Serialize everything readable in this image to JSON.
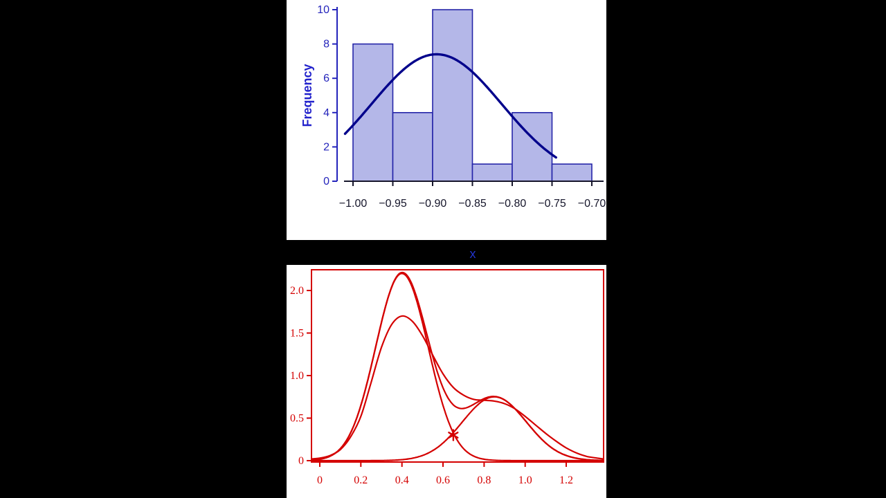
{
  "background_color": "#000000",
  "chart_data": [
    {
      "type": "bar",
      "subtype": "histogram",
      "title": "",
      "xlabel": "x",
      "ylabel": "Frequency",
      "bin_edges": [
        -1.0,
        -0.95,
        -0.9,
        -0.85,
        -0.8,
        -0.75,
        -0.7
      ],
      "counts": [
        8,
        4,
        10,
        1,
        4,
        1
      ],
      "x_tick_values": [
        -1.0,
        -0.95,
        -0.9,
        -0.85,
        -0.8,
        -0.75,
        -0.7
      ],
      "x_tick_labels": [
        "−1.00",
        "−0.95",
        "−0.90",
        "−0.85",
        "−0.80",
        "−0.75",
        "−0.70"
      ],
      "y_tick_values": [
        0,
        2,
        4,
        6,
        8,
        10
      ],
      "y_tick_labels": [
        "0",
        "2",
        "4",
        "6",
        "8",
        "10"
      ],
      "xlim": [
        -1.005,
        -0.695
      ],
      "ylim": [
        0,
        10
      ],
      "grid": false,
      "legend": "none",
      "overlay_curve": {
        "kind": "fitted-normal-density",
        "gaussians": [
          {
            "mu": -0.895,
            "sigma": 0.082,
            "amplitude": 7.4
          }
        ],
        "x_range": [
          -1.01,
          -0.745
        ]
      },
      "colors": {
        "bar_fill": "#b4b7e8",
        "bar_border": "#2525a8",
        "curve": "#00008b",
        "y_axis": "#2424bb",
        "x_axis": "#15152a",
        "ylabel": "#2222cc",
        "xlabel": "#2233cc"
      }
    },
    {
      "type": "line",
      "title": "",
      "xlabel": "",
      "ylabel": "",
      "x_tick_values": [
        0,
        0.2,
        0.4,
        0.6,
        0.8,
        1.0,
        1.2
      ],
      "x_tick_labels": [
        "0",
        "0.2",
        "0.4",
        "0.6",
        "0.8",
        "1.0",
        "1.2"
      ],
      "y_tick_values": [
        0,
        0.5,
        1.0,
        1.5,
        2.0
      ],
      "y_tick_labels": [
        "0",
        "0.5",
        "1.0",
        "1.5",
        "2.0"
      ],
      "xlim": [
        -0.04,
        1.38
      ],
      "ylim": [
        0,
        2.24
      ],
      "grid": false,
      "legend": "none",
      "box": true,
      "series": [
        {
          "name": "kernel-density-estimate",
          "points": [
            [
              -0.04,
              0.02
            ],
            [
              0,
              0.03
            ],
            [
              0.05,
              0.06
            ],
            [
              0.1,
              0.13
            ],
            [
              0.15,
              0.28
            ],
            [
              0.2,
              0.52
            ],
            [
              0.25,
              0.92
            ],
            [
              0.3,
              1.33
            ],
            [
              0.35,
              1.6
            ],
            [
              0.4,
              1.7
            ],
            [
              0.45,
              1.64
            ],
            [
              0.5,
              1.47
            ],
            [
              0.55,
              1.24
            ],
            [
              0.6,
              1.02
            ],
            [
              0.65,
              0.86
            ],
            [
              0.7,
              0.77
            ],
            [
              0.75,
              0.72
            ],
            [
              0.8,
              0.71
            ],
            [
              0.85,
              0.7
            ],
            [
              0.9,
              0.67
            ],
            [
              0.95,
              0.61
            ],
            [
              1.0,
              0.52
            ],
            [
              1.05,
              0.42
            ],
            [
              1.1,
              0.32
            ],
            [
              1.15,
              0.23
            ],
            [
              1.2,
              0.15
            ],
            [
              1.25,
              0.09
            ],
            [
              1.3,
              0.05
            ],
            [
              1.35,
              0.03
            ],
            [
              1.38,
              0.02
            ]
          ]
        },
        {
          "name": "mixture-component-1",
          "gaussians": [
            {
              "mu": 0.4,
              "sigma": 0.128,
              "amplitude": 2.2
            }
          ],
          "x_range": [
            -0.04,
            1.38
          ]
        },
        {
          "name": "mixture-component-2",
          "gaussians": [
            {
              "mu": 0.85,
              "sigma": 0.156,
              "amplitude": 0.75
            }
          ],
          "x_range": [
            -0.04,
            1.38
          ]
        },
        {
          "name": "mixture-density-sum",
          "gaussians": [
            {
              "mu": 0.4,
              "sigma": 0.128,
              "amplitude": 2.2
            },
            {
              "mu": 0.85,
              "sigma": 0.156,
              "amplitude": 0.75
            }
          ],
          "x_range": [
            -0.04,
            1.38
          ]
        }
      ],
      "marker": {
        "symbol": "asterisk",
        "x": 0.65,
        "y": 0.3
      },
      "color": "#d40000"
    }
  ]
}
